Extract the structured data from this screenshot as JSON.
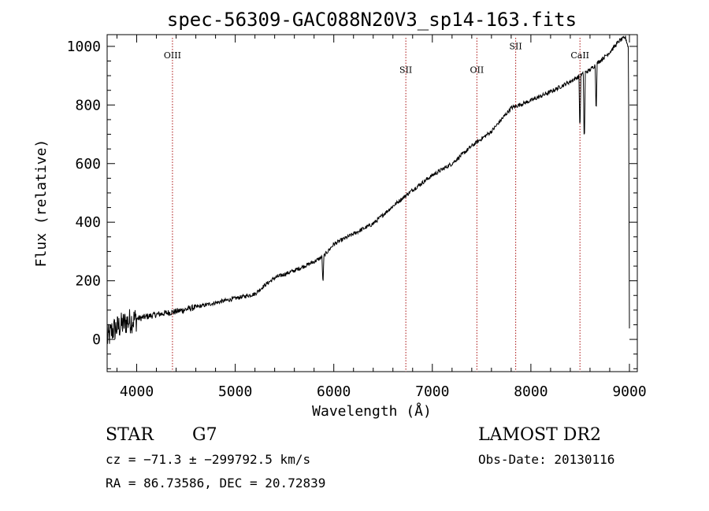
{
  "chart_data": {
    "type": "line",
    "title": "spec-56309-GAC088N20V3_sp14-163.fits",
    "xlabel": "Wavelength (Å)",
    "ylabel": "Flux (relative)",
    "xlim": [
      3700,
      9080
    ],
    "ylim": [
      -110,
      1040
    ],
    "xticks": [
      4000,
      5000,
      6000,
      7000,
      8000,
      9000
    ],
    "yticks": [
      0,
      200,
      400,
      600,
      800,
      1000
    ],
    "grid": false,
    "spectrum_anchors": [
      [
        3700,
        0
      ],
      [
        3750,
        30
      ],
      [
        3800,
        40
      ],
      [
        3850,
        50
      ],
      [
        3900,
        60
      ],
      [
        4000,
        70
      ],
      [
        4200,
        85
      ],
      [
        4400,
        95
      ],
      [
        4600,
        110
      ],
      [
        4800,
        125
      ],
      [
        5000,
        140
      ],
      [
        5200,
        155
      ],
      [
        5300,
        185
      ],
      [
        5400,
        210
      ],
      [
        5600,
        235
      ],
      [
        5800,
        265
      ],
      [
        5900,
        285
      ],
      [
        6000,
        325
      ],
      [
        6200,
        360
      ],
      [
        6400,
        395
      ],
      [
        6600,
        455
      ],
      [
        6800,
        510
      ],
      [
        7000,
        560
      ],
      [
        7200,
        600
      ],
      [
        7400,
        660
      ],
      [
        7600,
        710
      ],
      [
        7800,
        790
      ],
      [
        8000,
        815
      ],
      [
        8200,
        845
      ],
      [
        8400,
        880
      ],
      [
        8600,
        920
      ],
      [
        8800,
        980
      ],
      [
        8900,
        1020
      ],
      [
        8960,
        1030
      ],
      [
        8990,
        995
      ],
      [
        9000,
        40
      ]
    ],
    "absorption_features": [
      {
        "x": 5890,
        "depth": 100
      },
      {
        "x": 8498,
        "depth": 200
      },
      {
        "x": 8542,
        "depth": 260
      },
      {
        "x": 8662,
        "depth": 170
      }
    ],
    "emission_lines": [
      {
        "label": "OIII",
        "x": 4363,
        "label_y": 960
      },
      {
        "label": "SII",
        "x": 6731,
        "label_y": 910
      },
      {
        "label": "OII",
        "x": 7452,
        "label_y": 910
      },
      {
        "label": "SII",
        "x": 7846,
        "label_y": 990
      },
      {
        "label": "CaII",
        "x": 8498,
        "label_y": 960
      }
    ],
    "line_color": "#000000",
    "marker_line_color": "#aa1111"
  },
  "info": {
    "class": "STAR",
    "subclass": "G7",
    "survey": "LAMOST DR2",
    "cz": "cz = −71.3 ± −299792.5 km/s",
    "obs_date": "Obs-Date: 20130116",
    "radec": "RA =  86.73586, DEC =  20.72839"
  }
}
